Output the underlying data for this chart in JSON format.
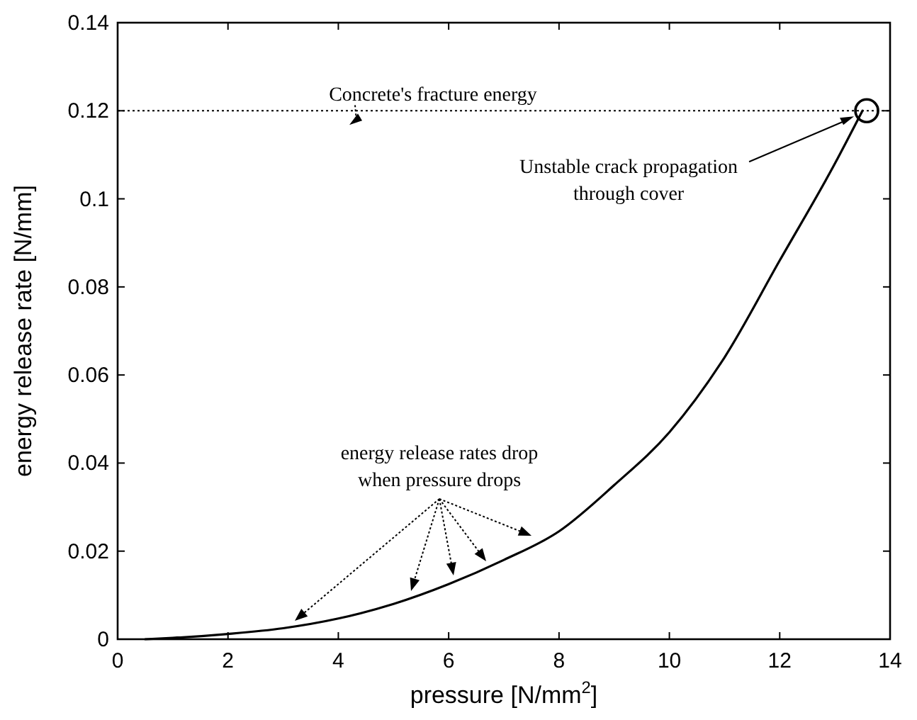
{
  "chart_data": {
    "type": "line",
    "xlabel": "pressure [N/mm$^{2}$]",
    "ylabel": "energy release rate [N/mm]",
    "x": [
      0.5,
      1,
      2,
      3,
      4,
      5,
      6,
      7,
      8,
      9,
      10,
      11,
      12,
      13,
      13.5
    ],
    "series": [
      {
        "color": "#000000",
        "values": [
          0,
          0.0003,
          0.0012,
          0.0025,
          0.0047,
          0.008,
          0.0125,
          0.018,
          0.0245,
          0.035,
          0.047,
          0.064,
          0.086,
          0.108,
          0.12
        ]
      }
    ],
    "xlim": [
      0,
      14
    ],
    "xticks": [
      0,
      2,
      4,
      6,
      8,
      10,
      12,
      14
    ],
    "ylim": [
      0,
      0.14
    ],
    "yticks": [
      0,
      0.02,
      0.04,
      0.06,
      0.08,
      0.1,
      0.12,
      0.14
    ],
    "grid": false,
    "marker": "none",
    "line_style": "solid",
    "ref_lines": [
      {
        "axis": "y",
        "value": 0.12,
        "label": "Concrete's fracture energy",
        "line_style": "dotted",
        "color": "#000000"
      }
    ],
    "annotations": [
      "Unstable crack propagation\nthrough cover",
      "energy release rates drop\nwhen pressure drops"
    ]
  }
}
